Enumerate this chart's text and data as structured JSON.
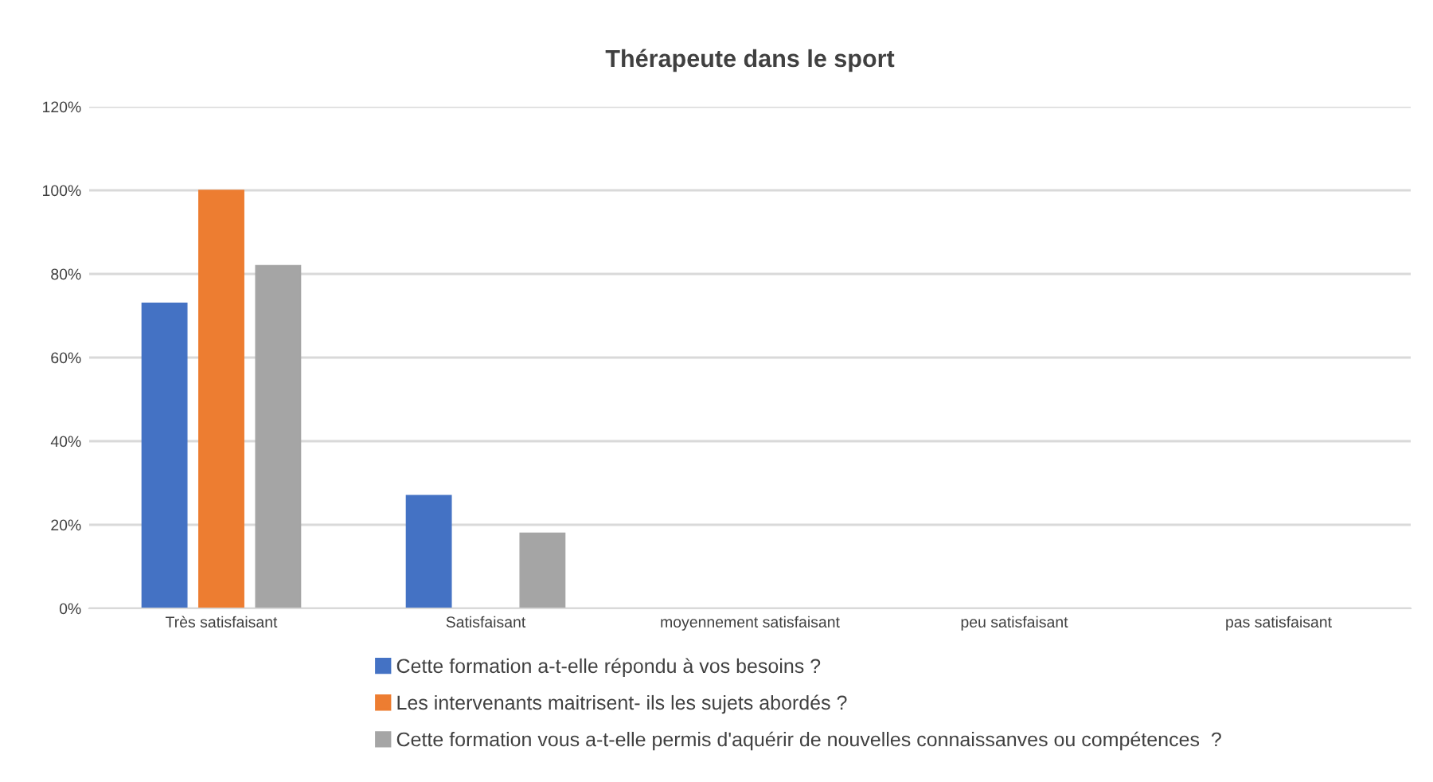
{
  "chart_data": {
    "type": "bar",
    "title": "Thérapeute dans le sport",
    "categories": [
      "Très satisfaisant",
      "Satisfaisant",
      "moyennement satisfaisant",
      "peu satisfaisant",
      "pas satisfaisant"
    ],
    "series": [
      {
        "name": "Cette formation a-t-elle répondu à vos besoins ?",
        "color": "#4472c4",
        "values": [
          73,
          27,
          0,
          0,
          0
        ]
      },
      {
        "name": "Les intervenants maitrisent- ils les sujets abordés ?",
        "color": "#ed7d31",
        "values": [
          100,
          0,
          0,
          0,
          0
        ]
      },
      {
        "name": "Cette formation vous a-t-elle permis d'aquérir de nouvelles connaissanves ou compétences  ?",
        "color": "#a5a5a5",
        "values": [
          82,
          18,
          0,
          0,
          0
        ]
      }
    ],
    "ylim": [
      0,
      120
    ],
    "yticks": [
      {
        "value": 0,
        "label": "0%"
      },
      {
        "value": 20,
        "label": "20%"
      },
      {
        "value": 40,
        "label": "40%"
      },
      {
        "value": 60,
        "label": "60%"
      },
      {
        "value": 80,
        "label": "80%"
      },
      {
        "value": 100,
        "label": "100%"
      },
      {
        "value": 120,
        "label": "120%"
      }
    ],
    "grid": "y",
    "legend": "bottom"
  }
}
